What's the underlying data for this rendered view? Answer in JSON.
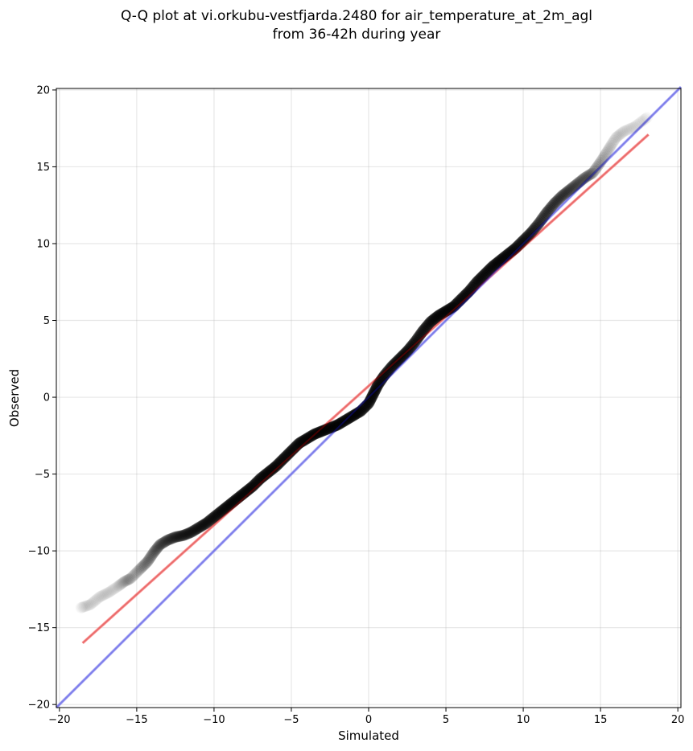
{
  "chart_data": {
    "type": "scatter",
    "title": "Q-Q plot at vi.orkubu-vestfjarda.2480 for air_temperature_at_2m_agl",
    "subtitle": "from 36-42h during year",
    "xlabel": "Simulated",
    "ylabel": "Observed",
    "xlim": [
      -20.2,
      20.2
    ],
    "ylim": [
      -20.2,
      20.1
    ],
    "xticks": [
      -20,
      -15,
      -10,
      -5,
      0,
      5,
      10,
      15,
      20
    ],
    "yticks": [
      -20,
      -15,
      -10,
      -5,
      0,
      5,
      10,
      15,
      20
    ],
    "xtick_labels": [
      "−20",
      "−15",
      "−10",
      "−5",
      "0",
      "5",
      "10",
      "15",
      "20"
    ],
    "ytick_labels": [
      "−20",
      "−15",
      "−10",
      "−5",
      "0",
      "5",
      "10",
      "15",
      "20"
    ],
    "grid": true,
    "series": [
      {
        "kind": "quantiles",
        "color": "#000000",
        "points": [
          [
            -18.6,
            -13.7
          ],
          [
            -18.0,
            -13.5
          ],
          [
            -17.4,
            -13.0
          ],
          [
            -16.8,
            -12.7
          ],
          [
            -16.2,
            -12.3
          ],
          [
            -15.8,
            -12.0
          ],
          [
            -15.4,
            -11.8
          ],
          [
            -14.8,
            -11.2
          ],
          [
            -14.3,
            -10.7
          ],
          [
            -13.9,
            -10.1
          ],
          [
            -13.5,
            -9.6
          ],
          [
            -13.0,
            -9.3
          ],
          [
            -12.5,
            -9.1
          ],
          [
            -12.0,
            -9.0
          ],
          [
            -11.5,
            -8.8
          ],
          [
            -11.0,
            -8.5
          ],
          [
            -10.5,
            -8.2
          ],
          [
            -10.0,
            -7.8
          ],
          [
            -9.5,
            -7.4
          ],
          [
            -9.0,
            -7.0
          ],
          [
            -8.5,
            -6.6
          ],
          [
            -8.0,
            -6.2
          ],
          [
            -7.5,
            -5.8
          ],
          [
            -7.0,
            -5.3
          ],
          [
            -6.5,
            -4.9
          ],
          [
            -6.0,
            -4.5
          ],
          [
            -5.5,
            -4.0
          ],
          [
            -5.0,
            -3.5
          ],
          [
            -4.5,
            -3.0
          ],
          [
            -4.0,
            -2.7
          ],
          [
            -3.5,
            -2.4
          ],
          [
            -3.0,
            -2.2
          ],
          [
            -2.5,
            -2.0
          ],
          [
            -2.0,
            -1.8
          ],
          [
            -1.5,
            -1.5
          ],
          [
            -1.0,
            -1.2
          ],
          [
            -0.5,
            -0.9
          ],
          [
            0.0,
            -0.4
          ],
          [
            0.3,
            0.2
          ],
          [
            0.6,
            0.8
          ],
          [
            1.0,
            1.4
          ],
          [
            1.5,
            2.0
          ],
          [
            2.0,
            2.5
          ],
          [
            2.5,
            3.0
          ],
          [
            3.0,
            3.6
          ],
          [
            3.5,
            4.3
          ],
          [
            4.0,
            4.9
          ],
          [
            4.5,
            5.3
          ],
          [
            5.0,
            5.6
          ],
          [
            5.5,
            5.9
          ],
          [
            6.0,
            6.4
          ],
          [
            6.5,
            6.9
          ],
          [
            7.0,
            7.5
          ],
          [
            7.5,
            8.0
          ],
          [
            8.0,
            8.5
          ],
          [
            8.5,
            8.9
          ],
          [
            9.0,
            9.3
          ],
          [
            9.5,
            9.7
          ],
          [
            10.0,
            10.2
          ],
          [
            10.5,
            10.7
          ],
          [
            11.0,
            11.3
          ],
          [
            11.5,
            12.0
          ],
          [
            12.0,
            12.6
          ],
          [
            12.5,
            13.1
          ],
          [
            13.0,
            13.5
          ],
          [
            13.5,
            13.9
          ],
          [
            14.0,
            14.3
          ],
          [
            14.5,
            14.6
          ],
          [
            15.0,
            15.3
          ],
          [
            15.5,
            16.1
          ],
          [
            16.0,
            16.9
          ],
          [
            16.5,
            17.3
          ],
          [
            17.2,
            17.6
          ],
          [
            18.0,
            18.2
          ]
        ]
      },
      {
        "kind": "fit-line",
        "color": "#ff8080",
        "points": [
          [
            -18.5,
            -16.0
          ],
          [
            18.1,
            17.1
          ]
        ]
      },
      {
        "kind": "identity-line",
        "color": "#9a9af5",
        "points": [
          [
            -20.2,
            -20.2
          ],
          [
            20.2,
            20.2
          ]
        ]
      }
    ]
  }
}
